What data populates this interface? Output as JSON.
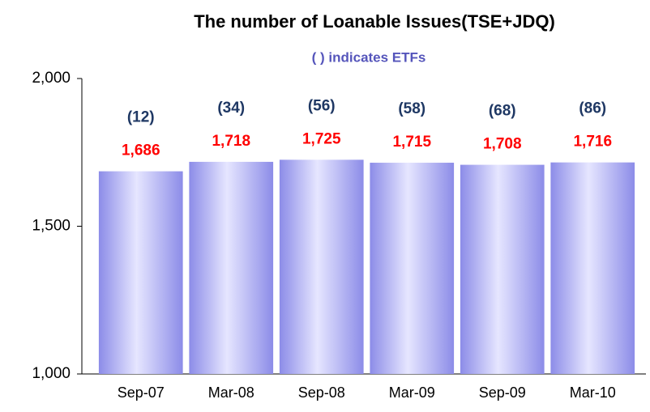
{
  "chart_data": {
    "type": "bar",
    "title": "The number of Loanable Issues(TSE+JDQ)",
    "subtitle": "(  ) indicates ETFs",
    "categories": [
      "Sep-07",
      "Mar-08",
      "Sep-08",
      "Mar-09",
      "Sep-09",
      "Mar-10"
    ],
    "values": [
      1686,
      1718,
      1725,
      1715,
      1708,
      1716
    ],
    "value_labels": [
      "1,686",
      "1,718",
      "1,725",
      "1,715",
      "1,708",
      "1,716"
    ],
    "etf_values": [
      12,
      34,
      56,
      58,
      68,
      86
    ],
    "etf_value_labels": [
      "(12)",
      "(34)",
      "(56)",
      "(58)",
      "(68)",
      "(86)"
    ],
    "color": "#a9a9f5",
    "ylim": [
      1000,
      2000
    ],
    "yticks": [
      {
        "value": 1000,
        "label": "1,000"
      },
      {
        "value": 1500,
        "label": "1,500"
      },
      {
        "value": 2000,
        "label": "2,000"
      }
    ],
    "grid": false
  }
}
